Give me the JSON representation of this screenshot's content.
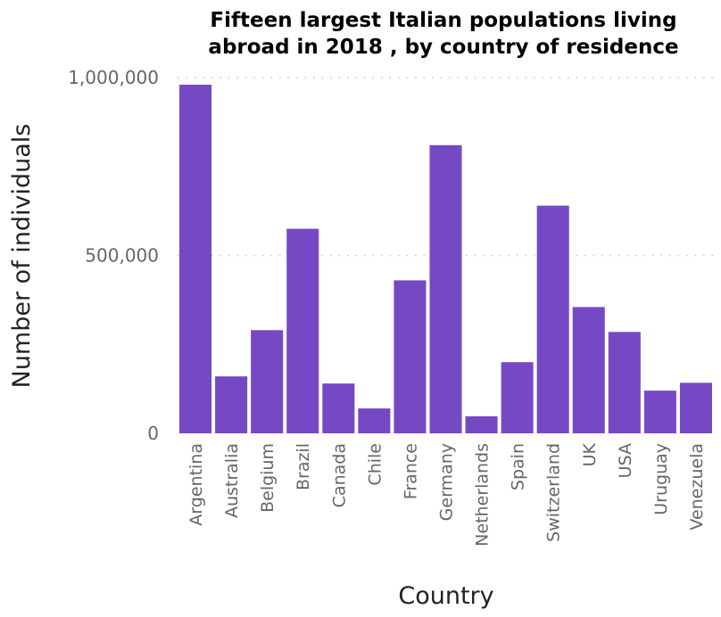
{
  "chart_data": {
    "type": "bar",
    "title_lines": [
      "Fifteen largest Italian populations living",
      "abroad in 2018 , by country of residence"
    ],
    "xlabel": "Country",
    "ylabel": "Number of individuals",
    "categories": [
      "Argentina",
      "Australia",
      "Belgium",
      "Brazil",
      "Canada",
      "Chile",
      "France",
      "Germany",
      "Netherlands",
      "Spain",
      "Switzerland",
      "UK",
      "USA",
      "Uruguay",
      "Venezuela"
    ],
    "values": [
      980000,
      160000,
      290000,
      575000,
      140000,
      70000,
      430000,
      810000,
      48000,
      200000,
      640000,
      355000,
      285000,
      120000,
      142000
    ],
    "yticks": [
      0,
      500000,
      1000000
    ],
    "ytick_labels": [
      "0",
      "500,000",
      "1,000,000"
    ],
    "ylim": [
      0,
      1000000
    ],
    "grid": true,
    "bar_color": "#7649c4"
  }
}
